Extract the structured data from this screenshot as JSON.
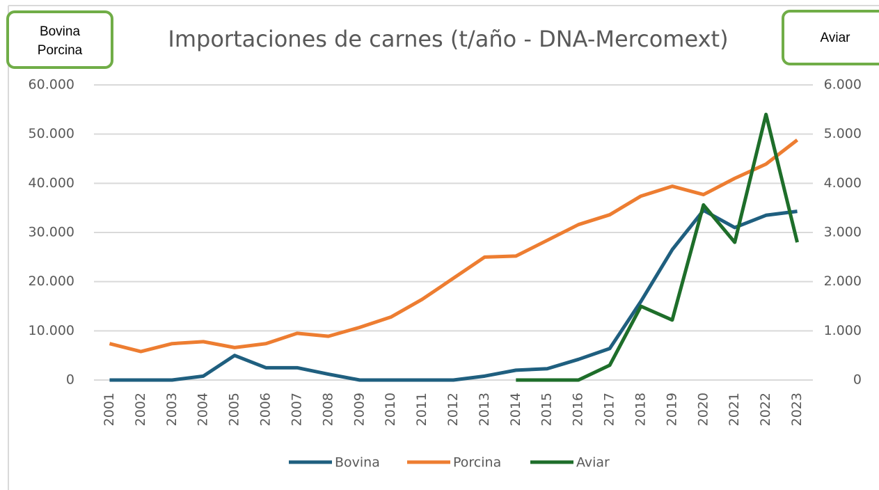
{
  "chart_data": {
    "type": "line",
    "title": "Importaciones de carnes (t/año - DNA-Mercomext)",
    "y_label": [
      "Bovina",
      "Porcina"
    ],
    "y2_label": "Aviar",
    "categories": [
      "2001",
      "2002",
      "2003",
      "2004",
      "2005",
      "2006",
      "2007",
      "2008",
      "2009",
      "2010",
      "2011",
      "2012",
      "2013",
      "2014",
      "2015",
      "2016",
      "2017",
      "2018",
      "2019",
      "2020",
      "2021",
      "2022",
      "2023"
    ],
    "series": [
      {
        "name": "Bovina",
        "color": "#1f5f7f",
        "values": [
          0,
          0,
          0,
          800,
          5000,
          2500,
          2500,
          1200,
          0,
          0,
          0,
          0,
          800,
          2000,
          2300,
          4200,
          6400,
          16000,
          26500,
          34500,
          31000,
          33500,
          34300
        ]
      },
      {
        "name": "Porcina",
        "color": "#ed7d31",
        "values": [
          7400,
          5800,
          7400,
          7800,
          6600,
          7400,
          9500,
          8900,
          10700,
          12800,
          16400,
          20700,
          25000,
          25200,
          28400,
          31600,
          33600,
          37400,
          39400,
          37700,
          41000,
          43900,
          48800
        ]
      },
      {
        "name": "Aviar",
        "color": "#1e6e2a",
        "axis": "y2",
        "values": [
          null,
          null,
          null,
          null,
          null,
          null,
          null,
          null,
          null,
          null,
          null,
          null,
          null,
          0,
          0,
          0,
          300,
          1500,
          1220,
          3560,
          2800,
          5400,
          2800
        ]
      }
    ],
    "ylim": [
      0,
      60000
    ],
    "yticks": [
      0,
      {
        "value": 10000,
        "label": "10.000"
      },
      {
        "value": 20000,
        "label": "20.000"
      },
      {
        "value": 30000,
        "label": "30.000"
      },
      {
        "value": 40000,
        "label": "40.000"
      },
      {
        "value": 50000,
        "label": "50.000"
      },
      {
        "value": 60000,
        "label": "60.000"
      }
    ],
    "y2lim": [
      0,
      6000
    ],
    "y2ticks": [
      0,
      {
        "value": 1000,
        "label": "1.000"
      },
      {
        "value": 2000,
        "label": "2.000"
      },
      {
        "value": 3000,
        "label": "3.000"
      },
      {
        "value": 4000,
        "label": "4.000"
      },
      {
        "value": 5000,
        "label": "5.000"
      },
      {
        "value": 6000,
        "label": "6.000"
      }
    ],
    "grid": true,
    "legend": "bottom"
  }
}
